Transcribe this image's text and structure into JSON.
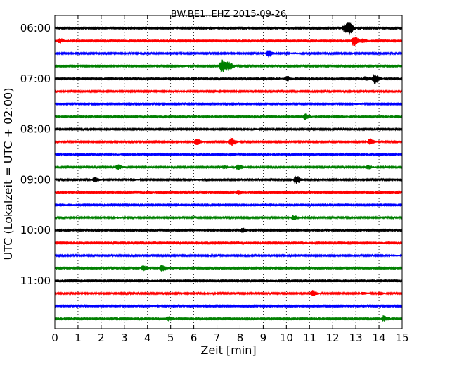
{
  "chart_data": {
    "type": "line",
    "title": "BW.BE1..EHZ 2015-09-26",
    "xlabel": "Zeit  [min]",
    "ylabel": "UTC (Lokalzeit = UTC + 02:00)",
    "xlim": [
      0,
      15
    ],
    "x_ticks": [
      "0",
      "1",
      "2",
      "3",
      "4",
      "5",
      "6",
      "7",
      "8",
      "9",
      "10",
      "11",
      "12",
      "13",
      "14",
      "15"
    ],
    "y_tick_labels": [
      "06:00",
      "07:00",
      "08:00",
      "09:00",
      "10:00",
      "11:00"
    ],
    "grid": true,
    "trace_colors": [
      "#000000",
      "#ff0000",
      "#0000ff",
      "#008000"
    ],
    "series": [
      {
        "row": 0,
        "events": [
          [
            6.7,
            0.3
          ],
          [
            9.8,
            0.25
          ],
          [
            12.5,
            1.0
          ],
          [
            12.7,
            1.35
          ]
        ]
      },
      {
        "row": 1,
        "events": [
          [
            0.2,
            0.6
          ],
          [
            2.9,
            0.2
          ],
          [
            12.9,
            1.25
          ],
          [
            13.3,
            0.45
          ]
        ]
      },
      {
        "row": 2,
        "events": [
          [
            9.2,
            0.9
          ],
          [
            10.3,
            0.15
          ]
        ]
      },
      {
        "row": 3,
        "events": [
          [
            7.2,
            1.75
          ],
          [
            7.5,
            0.9
          ],
          [
            5.5,
            0.15
          ]
        ]
      },
      {
        "row": 4,
        "events": [
          [
            10.0,
            0.6
          ],
          [
            13.8,
            1.2
          ],
          [
            13.4,
            0.5
          ],
          [
            9.6,
            0.2
          ]
        ]
      },
      {
        "row": 5,
        "events": []
      },
      {
        "row": 6,
        "events": [
          [
            13.0,
            0.15
          ]
        ]
      },
      {
        "row": 7,
        "events": [
          [
            10.8,
            0.75
          ],
          [
            12.4,
            0.2
          ]
        ]
      },
      {
        "row": 8,
        "events": [
          [
            8.6,
            0.2
          ]
        ]
      },
      {
        "row": 9,
        "events": [
          [
            6.1,
            0.75
          ],
          [
            7.6,
            1.05
          ],
          [
            13.6,
            0.75
          ]
        ]
      },
      {
        "row": 10,
        "events": [
          [
            7.6,
            0.35
          ],
          [
            2.6,
            0.15
          ]
        ]
      },
      {
        "row": 11,
        "events": [
          [
            2.7,
            0.6
          ],
          [
            7.3,
            0.4
          ],
          [
            7.9,
            0.65
          ],
          [
            13.5,
            0.55
          ]
        ]
      },
      {
        "row": 12,
        "events": [
          [
            1.7,
            0.65
          ],
          [
            3.3,
            0.3
          ],
          [
            10.4,
            1.05
          ],
          [
            6.0,
            0.15
          ]
        ]
      },
      {
        "row": 13,
        "events": [
          [
            4.0,
            0.3
          ],
          [
            7.9,
            0.55
          ]
        ]
      },
      {
        "row": 14,
        "events": [
          [
            0.6,
            0.2
          ]
        ]
      },
      {
        "row": 15,
        "events": [
          [
            10.3,
            0.6
          ],
          [
            2.7,
            0.15
          ]
        ]
      },
      {
        "row": 16,
        "events": [
          [
            8.1,
            0.55
          ],
          [
            6.2,
            0.15
          ]
        ]
      },
      {
        "row": 17,
        "events": [
          [
            10.8,
            0.15
          ],
          [
            14.0,
            0.15
          ]
        ]
      },
      {
        "row": 18,
        "events": [
          [
            14.6,
            0.15
          ]
        ]
      },
      {
        "row": 19,
        "events": [
          [
            3.8,
            0.6
          ],
          [
            4.6,
            0.85
          ],
          [
            5.1,
            0.2
          ]
        ]
      },
      {
        "row": 20,
        "events": [
          [
            9.3,
            0.2
          ],
          [
            4.2,
            0.15
          ]
        ]
      },
      {
        "row": 21,
        "events": [
          [
            11.1,
            0.75
          ],
          [
            13.3,
            0.3
          ],
          [
            14.0,
            0.35
          ]
        ]
      },
      {
        "row": 22,
        "events": [
          [
            4.2,
            0.15
          ]
        ]
      },
      {
        "row": 23,
        "events": [
          [
            4.9,
            0.55
          ],
          [
            14.2,
            0.75
          ],
          [
            4.6,
            0.25
          ]
        ]
      }
    ]
  }
}
